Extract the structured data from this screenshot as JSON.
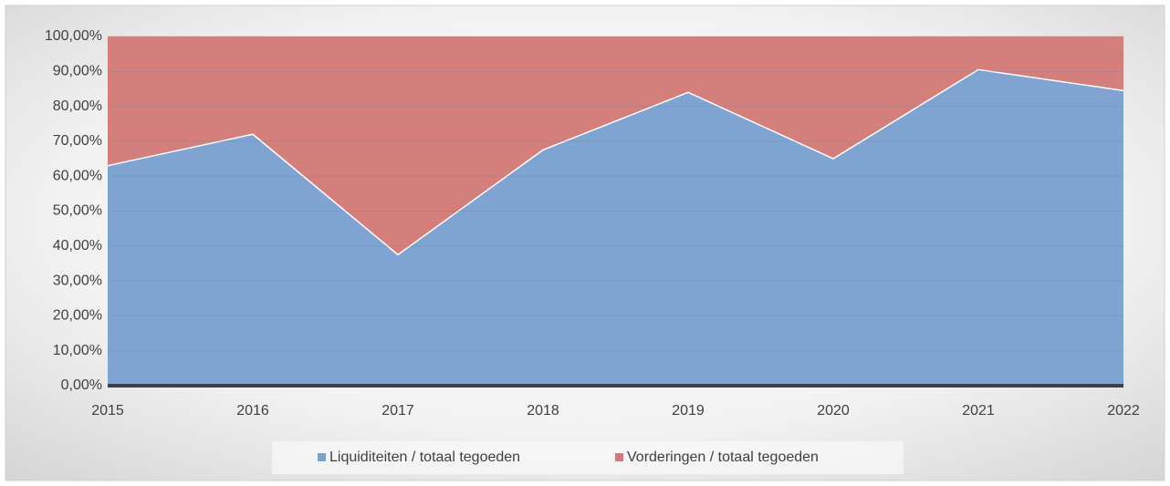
{
  "chart_data": {
    "type": "stacked_area",
    "categories": [
      "2015",
      "2016",
      "2017",
      "2018",
      "2019",
      "2020",
      "2021",
      "2022"
    ],
    "series": [
      {
        "name": "Liquiditeiten / totaal tegoeden",
        "color": "#7ba1cf",
        "values": [
          63,
          72,
          37.5,
          67.5,
          84,
          65,
          90.5,
          84.5
        ]
      },
      {
        "name": "Vorderingen / totaal tegoeden",
        "color": "#d47b78",
        "values": [
          37,
          28,
          62.5,
          32.5,
          16,
          35,
          9.5,
          15.5
        ]
      }
    ],
    "ylim": [
      0,
      100
    ],
    "yticks": [
      {
        "value": 0,
        "label": "0,00%"
      },
      {
        "value": 10,
        "label": "10,00%"
      },
      {
        "value": 20,
        "label": "20,00%"
      },
      {
        "value": 30,
        "label": "30,00%"
      },
      {
        "value": 40,
        "label": "40,00%"
      },
      {
        "value": 50,
        "label": "50,00%"
      },
      {
        "value": 60,
        "label": "60,00%"
      },
      {
        "value": 70,
        "label": "70,00%"
      },
      {
        "value": 80,
        "label": "80,00%"
      },
      {
        "value": 90,
        "label": "90,00%"
      },
      {
        "value": 100,
        "label": "100,00%"
      }
    ],
    "grid": true,
    "legend": "bottom"
  }
}
